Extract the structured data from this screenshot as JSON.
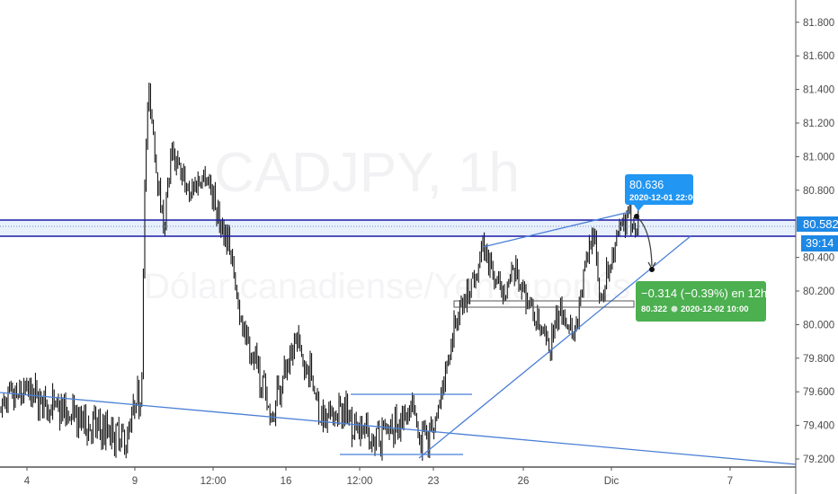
{
  "chart_data": {
    "type": "ohlc",
    "symbol_watermark": "CADJPY, 1h",
    "description_watermark": "Dólar canadiense/Yen japonés",
    "y_ticks": [
      "81.800",
      "81.600",
      "81.400",
      "81.200",
      "81.000",
      "80.800",
      "80.400",
      "80.200",
      "80.000",
      "79.800",
      "79.600",
      "79.400",
      "79.200"
    ],
    "x_ticks": [
      "4",
      "9",
      "12:00",
      "16",
      "12:00",
      "23",
      "26",
      "Dic",
      "7"
    ],
    "ylim": [
      79.15,
      81.9
    ],
    "price_path": [
      [
        "2020-11-02 18:00",
        79.5
      ],
      [
        "2020-11-04 00:00",
        79.6
      ],
      [
        "2020-11-05 06:00",
        79.5
      ],
      [
        "2020-11-06 22:00",
        79.4
      ],
      [
        "2020-11-08 14:00",
        79.3
      ],
      [
        "2020-11-09 00:00",
        79.5
      ],
      [
        "2020-11-09 05:00",
        79.6
      ],
      [
        "2020-11-09 08:00",
        81.0
      ],
      [
        "2020-11-09 11:00",
        81.4
      ],
      [
        "2020-11-09 17:00",
        80.9
      ],
      [
        "2020-11-09 22:00",
        80.6
      ],
      [
        "2020-11-10 04:00",
        81.0
      ],
      [
        "2020-11-10 18:00",
        80.8
      ],
      [
        "2020-11-11 07:00",
        80.9
      ],
      [
        "2020-11-11 23:00",
        80.6
      ],
      [
        "2020-11-12 12:00",
        80.5
      ],
      [
        "2020-11-12 21:00",
        80.2
      ],
      [
        "2020-11-13 14:00",
        79.9
      ],
      [
        "2020-11-14 11:00",
        79.7
      ],
      [
        "2020-11-15 00:00",
        79.45
      ],
      [
        "2020-11-15 20:00",
        79.7
      ],
      [
        "2020-11-16 09:00",
        79.9
      ],
      [
        "2020-11-16 20:00",
        79.7
      ],
      [
        "2020-11-17 07:00",
        79.4
      ],
      [
        "2020-11-17 21:00",
        79.5
      ],
      [
        "2020-11-18 12:00",
        79.4
      ],
      [
        "2020-11-19 14:00",
        79.3
      ],
      [
        "2020-11-20 16:00",
        79.4
      ],
      [
        "2020-11-21 18:00",
        79.5
      ],
      [
        "2020-11-22 08:00",
        79.3
      ],
      [
        "2020-11-23 02:00",
        79.4
      ],
      [
        "2020-11-23 09:00",
        79.7
      ],
      [
        "2020-11-23 17:00",
        80.0
      ],
      [
        "2020-11-24 04:00",
        80.2
      ],
      [
        "2020-11-24 16:00",
        80.45
      ],
      [
        "2020-11-25 05:00",
        80.2
      ],
      [
        "2020-11-25 19:00",
        80.3
      ],
      [
        "2020-11-26 10:00",
        80.1
      ],
      [
        "2020-11-27 10:00",
        79.85
      ],
      [
        "2020-11-28 04:00",
        80.1
      ],
      [
        "2020-11-28 22:00",
        79.95
      ],
      [
        "2020-11-29 11:00",
        80.3
      ],
      [
        "2020-11-29 23:00",
        80.6
      ],
      [
        "2020-11-30 08:00",
        80.15
      ],
      [
        "2020-12-01 00:00",
        80.4
      ],
      [
        "2020-12-01 11:00",
        80.55
      ],
      [
        "2020-12-01 22:00",
        80.636
      ],
      [
        "2020-12-02 07:00",
        80.6
      ]
    ],
    "current_price": {
      "value": "80.582",
      "countdown": "39:14",
      "color": "#1e88e5"
    },
    "high_label": {
      "price": "80.636",
      "datetime": "2020-12-01 22:00",
      "color": "#2196f3"
    },
    "projection": {
      "change": "−0.314 (−0.39%) en 12h",
      "price": "80.322",
      "datetime": "2020-12-02  10:00",
      "color": "#4caf50"
    },
    "colors": {
      "bars": "#000000",
      "trendlines": "#4a7fd6",
      "band_lines": "#1a1aa8",
      "band_fill": "#e8f0fc"
    }
  }
}
